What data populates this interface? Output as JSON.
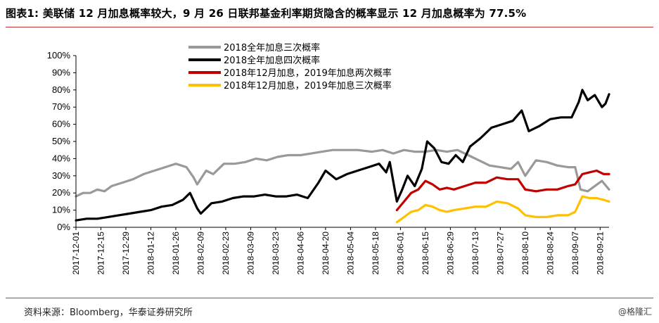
{
  "header": {
    "label": "图表1:",
    "text": "美联储 12 月加息概率较大，9 月 26 日联邦基金利率期货隐含的概率显示 12 月加息概率为 77.5%"
  },
  "footer": {
    "source": "资料来源：Bloomberg，华泰证券研究所",
    "watermark": "@格隆汇"
  },
  "colors": {
    "accent": "#c23531"
  },
  "chart_data": {
    "type": "line",
    "title": "",
    "xlabel": "",
    "ylabel": "",
    "ylim": [
      0,
      100
    ],
    "y_ticks": [
      "100%",
      "90%",
      "80%",
      "70%",
      "60%",
      "50%",
      "40%",
      "30%",
      "20%",
      "10%",
      "0%"
    ],
    "y_tick_values": [
      100,
      90,
      80,
      70,
      60,
      50,
      40,
      30,
      20,
      10,
      0
    ],
    "x_ticks": [
      "2017-12-01",
      "2017-12-15",
      "2017-12-29",
      "2018-01-12",
      "2018-01-26",
      "2018-02-09",
      "2018-02-23",
      "2018-03-09",
      "2018-03-23",
      "2018-04-06",
      "2018-04-20",
      "2018-05-04",
      "2018-05-18",
      "2018-06-01",
      "2018-06-15",
      "2018-06-29",
      "2018-07-13",
      "2018-07-27",
      "2018-08-10",
      "2018-08-24",
      "2018-09-07",
      "2018-09-21"
    ],
    "xlim": [
      "2017-12-01",
      "2018-09-26"
    ],
    "grid": false,
    "legend_position": "top-center",
    "series": [
      {
        "name": "2018全年加息三次概率",
        "color": "#999999",
        "points": [
          [
            "2017-12-01",
            18
          ],
          [
            "2017-12-05",
            20
          ],
          [
            "2017-12-09",
            20
          ],
          [
            "2017-12-13",
            22
          ],
          [
            "2017-12-17",
            21
          ],
          [
            "2017-12-21",
            24
          ],
          [
            "2017-12-27",
            26
          ],
          [
            "2018-01-02",
            28
          ],
          [
            "2018-01-08",
            31
          ],
          [
            "2018-01-14",
            33
          ],
          [
            "2018-01-20",
            35
          ],
          [
            "2018-01-26",
            37
          ],
          [
            "2018-02-01",
            35
          ],
          [
            "2018-02-05",
            29
          ],
          [
            "2018-02-07",
            25
          ],
          [
            "2018-02-12",
            33
          ],
          [
            "2018-02-16",
            31
          ],
          [
            "2018-02-22",
            37
          ],
          [
            "2018-02-28",
            37
          ],
          [
            "2018-03-06",
            38
          ],
          [
            "2018-03-12",
            40
          ],
          [
            "2018-03-18",
            39
          ],
          [
            "2018-03-24",
            41
          ],
          [
            "2018-03-30",
            42
          ],
          [
            "2018-04-06",
            42
          ],
          [
            "2018-04-12",
            43
          ],
          [
            "2018-04-18",
            44
          ],
          [
            "2018-04-24",
            45
          ],
          [
            "2018-04-30",
            45
          ],
          [
            "2018-05-08",
            45
          ],
          [
            "2018-05-16",
            44
          ],
          [
            "2018-05-22",
            45
          ],
          [
            "2018-05-28",
            43
          ],
          [
            "2018-06-03",
            45
          ],
          [
            "2018-06-09",
            44
          ],
          [
            "2018-06-15",
            44
          ],
          [
            "2018-06-21",
            45
          ],
          [
            "2018-06-27",
            44
          ],
          [
            "2018-07-03",
            45
          ],
          [
            "2018-07-09",
            42
          ],
          [
            "2018-07-15",
            39
          ],
          [
            "2018-07-21",
            36
          ],
          [
            "2018-07-27",
            35
          ],
          [
            "2018-08-02",
            34
          ],
          [
            "2018-08-06",
            38
          ],
          [
            "2018-08-10",
            30
          ],
          [
            "2018-08-16",
            39
          ],
          [
            "2018-08-22",
            38
          ],
          [
            "2018-08-28",
            36
          ],
          [
            "2018-09-03",
            35
          ],
          [
            "2018-09-07",
            35
          ],
          [
            "2018-09-10",
            22
          ],
          [
            "2018-09-14",
            21
          ],
          [
            "2018-09-18",
            24
          ],
          [
            "2018-09-22",
            27
          ],
          [
            "2018-09-26",
            22
          ]
        ]
      },
      {
        "name": "2018全年加息四次概率",
        "color": "#000000",
        "points": [
          [
            "2017-12-01",
            4
          ],
          [
            "2017-12-07",
            5
          ],
          [
            "2017-12-13",
            5
          ],
          [
            "2017-12-19",
            6
          ],
          [
            "2017-12-25",
            7
          ],
          [
            "2017-12-31",
            8
          ],
          [
            "2018-01-06",
            9
          ],
          [
            "2018-01-12",
            10
          ],
          [
            "2018-01-18",
            12
          ],
          [
            "2018-01-24",
            13
          ],
          [
            "2018-01-30",
            16
          ],
          [
            "2018-02-03",
            20
          ],
          [
            "2018-02-07",
            11
          ],
          [
            "2018-02-09",
            8
          ],
          [
            "2018-02-15",
            14
          ],
          [
            "2018-02-21",
            15
          ],
          [
            "2018-02-27",
            17
          ],
          [
            "2018-03-05",
            18
          ],
          [
            "2018-03-11",
            18
          ],
          [
            "2018-03-17",
            19
          ],
          [
            "2018-03-23",
            18
          ],
          [
            "2018-03-29",
            18
          ],
          [
            "2018-04-04",
            19
          ],
          [
            "2018-04-10",
            17
          ],
          [
            "2018-04-16",
            26
          ],
          [
            "2018-04-20",
            33
          ],
          [
            "2018-04-26",
            28
          ],
          [
            "2018-05-02",
            31
          ],
          [
            "2018-05-08",
            33
          ],
          [
            "2018-05-14",
            35
          ],
          [
            "2018-05-20",
            37
          ],
          [
            "2018-05-24",
            32
          ],
          [
            "2018-05-26",
            38
          ],
          [
            "2018-05-30",
            15
          ],
          [
            "2018-06-02",
            22
          ],
          [
            "2018-06-05",
            30
          ],
          [
            "2018-06-09",
            24
          ],
          [
            "2018-06-13",
            34
          ],
          [
            "2018-06-16",
            50
          ],
          [
            "2018-06-20",
            46
          ],
          [
            "2018-06-24",
            38
          ],
          [
            "2018-06-28",
            37
          ],
          [
            "2018-07-02",
            42
          ],
          [
            "2018-07-06",
            38
          ],
          [
            "2018-07-10",
            47
          ],
          [
            "2018-07-16",
            52
          ],
          [
            "2018-07-22",
            58
          ],
          [
            "2018-07-28",
            60
          ],
          [
            "2018-08-03",
            62
          ],
          [
            "2018-08-08",
            68
          ],
          [
            "2018-08-12",
            56
          ],
          [
            "2018-08-18",
            59
          ],
          [
            "2018-08-24",
            63
          ],
          [
            "2018-08-30",
            64
          ],
          [
            "2018-09-05",
            64
          ],
          [
            "2018-09-09",
            73
          ],
          [
            "2018-09-11",
            80
          ],
          [
            "2018-09-14",
            74
          ],
          [
            "2018-09-18",
            77
          ],
          [
            "2018-09-22",
            70
          ],
          [
            "2018-09-24",
            72
          ],
          [
            "2018-09-26",
            77.5
          ]
        ]
      },
      {
        "name": "2018年12月加息，2019年加息两次概率",
        "color": "#c00000",
        "points": [
          [
            "2018-05-30",
            10
          ],
          [
            "2018-06-03",
            15
          ],
          [
            "2018-06-07",
            20
          ],
          [
            "2018-06-11",
            22
          ],
          [
            "2018-06-15",
            27
          ],
          [
            "2018-06-19",
            25
          ],
          [
            "2018-06-23",
            22
          ],
          [
            "2018-06-27",
            23
          ],
          [
            "2018-07-01",
            22
          ],
          [
            "2018-07-07",
            24
          ],
          [
            "2018-07-13",
            26
          ],
          [
            "2018-07-19",
            26
          ],
          [
            "2018-07-25",
            29
          ],
          [
            "2018-07-31",
            28
          ],
          [
            "2018-08-06",
            28
          ],
          [
            "2018-08-10",
            22
          ],
          [
            "2018-08-16",
            21
          ],
          [
            "2018-08-22",
            22
          ],
          [
            "2018-08-28",
            22
          ],
          [
            "2018-09-03",
            24
          ],
          [
            "2018-09-07",
            25
          ],
          [
            "2018-09-11",
            31
          ],
          [
            "2018-09-15",
            32
          ],
          [
            "2018-09-19",
            33
          ],
          [
            "2018-09-23",
            31
          ],
          [
            "2018-09-26",
            31
          ]
        ]
      },
      {
        "name": "2018年12月加息，2019年加息三次概率",
        "color": "#ffc000",
        "points": [
          [
            "2018-05-30",
            3
          ],
          [
            "2018-06-03",
            6
          ],
          [
            "2018-06-07",
            9
          ],
          [
            "2018-06-11",
            10
          ],
          [
            "2018-06-15",
            13
          ],
          [
            "2018-06-19",
            12
          ],
          [
            "2018-06-23",
            10
          ],
          [
            "2018-06-27",
            9
          ],
          [
            "2018-07-01",
            10
          ],
          [
            "2018-07-07",
            11
          ],
          [
            "2018-07-13",
            12
          ],
          [
            "2018-07-19",
            12
          ],
          [
            "2018-07-25",
            15
          ],
          [
            "2018-07-31",
            14
          ],
          [
            "2018-08-06",
            11
          ],
          [
            "2018-08-10",
            7
          ],
          [
            "2018-08-16",
            6
          ],
          [
            "2018-08-22",
            6
          ],
          [
            "2018-08-28",
            7
          ],
          [
            "2018-09-03",
            7
          ],
          [
            "2018-09-07",
            9
          ],
          [
            "2018-09-11",
            18
          ],
          [
            "2018-09-15",
            17
          ],
          [
            "2018-09-19",
            17
          ],
          [
            "2018-09-23",
            16
          ],
          [
            "2018-09-26",
            15
          ]
        ]
      }
    ]
  }
}
